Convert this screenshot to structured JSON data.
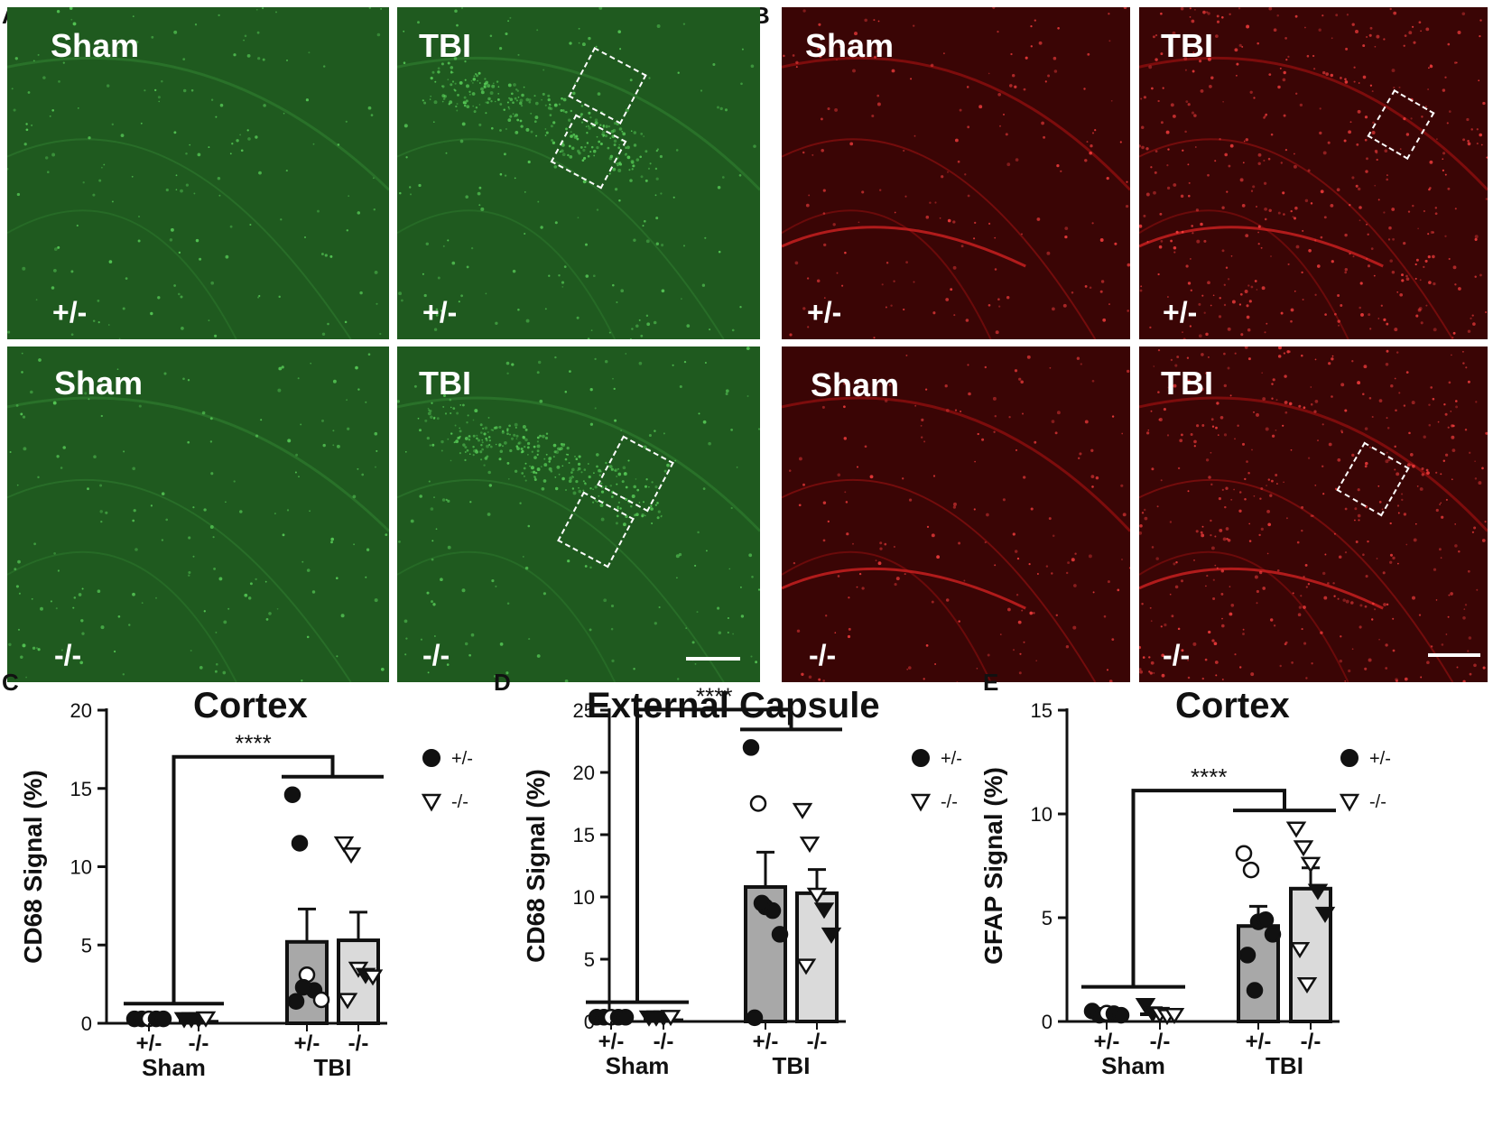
{
  "panels_micro": {
    "A_letter": "A",
    "B_letter": "B",
    "images": [
      {
        "id": "a-sham-het",
        "condition": "Sham",
        "genotype": "+/-",
        "stain_color": "#1f5a1f"
      },
      {
        "id": "a-tbi-het",
        "condition": "TBI",
        "genotype": "+/-",
        "stain_color": "#1f5a1f"
      },
      {
        "id": "a-sham-ko",
        "condition": "Sham",
        "genotype": "-/-",
        "stain_color": "#1f5a1f"
      },
      {
        "id": "a-tbi-ko",
        "condition": "TBI",
        "genotype": "-/-",
        "stain_color": "#1f5a1f"
      },
      {
        "id": "b-sham-het",
        "condition": "Sham",
        "genotype": "+/-",
        "stain_color": "#3a0505"
      },
      {
        "id": "b-tbi-het",
        "condition": "TBI",
        "genotype": "+/-",
        "stain_color": "#3a0505"
      },
      {
        "id": "b-sham-ko",
        "condition": "Sham",
        "genotype": "-/-",
        "stain_color": "#3a0505"
      },
      {
        "id": "b-tbi-ko",
        "condition": "TBI",
        "genotype": "-/-",
        "stain_color": "#3a0505"
      }
    ]
  },
  "chart_data": [
    {
      "letter": "C",
      "type": "bar",
      "title": "Cortex",
      "ylabel": "CD68 Signal (%)",
      "ylim": [
        0,
        20
      ],
      "yticks": [
        0,
        5,
        10,
        15,
        20
      ],
      "groups": [
        "Sham",
        "TBI"
      ],
      "categories": [
        "+/-",
        "-/-",
        "+/-",
        "-/-"
      ],
      "series": [
        {
          "values": [
            0.1,
            0.1,
            5.2,
            5.3
          ],
          "sem": [
            0.05,
            0.05,
            2.1,
            1.8
          ]
        }
      ],
      "points": [
        [
          {
            "y": 0.05,
            "f": 1
          },
          {
            "y": 0.05,
            "f": 1
          },
          {
            "y": 0.05,
            "f": 0
          },
          {
            "y": 0.05,
            "f": 1
          },
          {
            "y": 0.05,
            "f": 1
          }
        ],
        [
          {
            "y": 0.05,
            "f": 1
          },
          {
            "y": 0.05,
            "f": 1
          },
          {
            "y": 0.05,
            "f": 1
          },
          {
            "y": 0.1,
            "f": 0
          }
        ],
        [
          {
            "y": 14.6,
            "f": 1
          },
          {
            "y": 11.5,
            "f": 1
          },
          {
            "y": 3.1,
            "f": 0
          },
          {
            "y": 2.1,
            "f": 1
          },
          {
            "y": 1.5,
            "f": 0
          },
          {
            "y": 1.4,
            "f": 1
          },
          {
            "y": 2.3,
            "f": 1
          }
        ],
        [
          {
            "y": 11.5,
            "f": 0
          },
          {
            "y": 10.8,
            "f": 0
          },
          {
            "y": 3.5,
            "f": 0
          },
          {
            "y": 3.1,
            "f": 1
          },
          {
            "y": 3.0,
            "f": 0
          },
          {
            "y": 1.5,
            "f": 0
          }
        ]
      ],
      "significance": "****",
      "legend": [
        {
          "label": "+/-",
          "marker": "circle"
        },
        {
          "label": "-/-",
          "marker": "triangle-down"
        }
      ]
    },
    {
      "letter": "D",
      "type": "bar",
      "title": "External Capsule",
      "ylabel": "CD68 Signal (%)",
      "ylim": [
        0,
        25
      ],
      "yticks": [
        0,
        5,
        10,
        15,
        20,
        25
      ],
      "groups": [
        "Sham",
        "TBI"
      ],
      "categories": [
        "+/-",
        "-/-",
        "+/-",
        "-/-"
      ],
      "series": [
        {
          "values": [
            0.1,
            0.1,
            10.8,
            10.3
          ],
          "sem": [
            0.05,
            0.05,
            2.8,
            1.9
          ]
        }
      ],
      "points": [
        [
          {
            "y": 0.05,
            "f": 1
          },
          {
            "y": 0.05,
            "f": 1
          },
          {
            "y": 0.05,
            "f": 0
          },
          {
            "y": 0.05,
            "f": 1
          },
          {
            "y": 0.05,
            "f": 1
          }
        ],
        [
          {
            "y": 0.05,
            "f": 1
          },
          {
            "y": 0.05,
            "f": 1
          },
          {
            "y": 0.05,
            "f": 1
          },
          {
            "y": 0.1,
            "f": 0
          }
        ],
        [
          {
            "y": 22.0,
            "f": 1
          },
          {
            "y": 17.5,
            "f": 0
          },
          {
            "y": 9.2,
            "f": 1
          },
          {
            "y": 8.9,
            "f": 1
          },
          {
            "y": 7.0,
            "f": 1
          },
          {
            "y": 0.3,
            "f": 1
          },
          {
            "y": 9.5,
            "f": 1
          }
        ],
        [
          {
            "y": 17.0,
            "f": 0
          },
          {
            "y": 14.3,
            "f": 0
          },
          {
            "y": 10.2,
            "f": 0
          },
          {
            "y": 9.0,
            "f": 1
          },
          {
            "y": 7.0,
            "f": 1
          },
          {
            "y": 4.5,
            "f": 0
          }
        ]
      ],
      "significance": "****",
      "legend": [
        {
          "label": "+/-",
          "marker": "circle"
        },
        {
          "label": "-/-",
          "marker": "triangle-down"
        }
      ]
    },
    {
      "letter": "E",
      "type": "bar",
      "title": "Cortex",
      "ylabel": "GFAP Signal (%)",
      "ylim": [
        0,
        15
      ],
      "yticks": [
        0,
        5,
        10,
        15
      ],
      "groups": [
        "Sham",
        "TBI"
      ],
      "categories": [
        "+/-",
        "-/-",
        "+/-",
        "-/-"
      ],
      "series": [
        {
          "values": [
            0.3,
            0.35,
            4.6,
            6.4
          ],
          "sem": [
            0.1,
            0.15,
            0.95,
            1.0
          ]
        }
      ],
      "points": [
        [
          {
            "y": 0.5,
            "f": 1
          },
          {
            "y": 0.3,
            "f": 1
          },
          {
            "y": 0.4,
            "f": 0
          },
          {
            "y": 0.2,
            "f": 1
          },
          {
            "y": 0.3,
            "f": 1
          }
        ],
        [
          {
            "y": 0.8,
            "f": 1
          },
          {
            "y": 0.4,
            "f": 1
          },
          {
            "y": 0.2,
            "f": 0
          },
          {
            "y": 0.1,
            "f": 0
          },
          {
            "y": 0.15,
            "f": 0
          }
        ],
        [
          {
            "y": 8.1,
            "f": 0
          },
          {
            "y": 7.3,
            "f": 0
          },
          {
            "y": 4.8,
            "f": 1
          },
          {
            "y": 4.9,
            "f": 1
          },
          {
            "y": 4.2,
            "f": 1
          },
          {
            "y": 3.2,
            "f": 1
          },
          {
            "y": 1.5,
            "f": 1
          }
        ],
        [
          {
            "y": 9.3,
            "f": 0
          },
          {
            "y": 8.4,
            "f": 0
          },
          {
            "y": 7.6,
            "f": 0
          },
          {
            "y": 6.3,
            "f": 1
          },
          {
            "y": 5.2,
            "f": 1
          },
          {
            "y": 3.5,
            "f": 0
          },
          {
            "y": 1.8,
            "f": 0
          }
        ]
      ],
      "significance": "****",
      "legend": [
        {
          "label": "+/-",
          "marker": "circle"
        },
        {
          "label": "-/-",
          "marker": "triangle-down"
        }
      ]
    }
  ]
}
